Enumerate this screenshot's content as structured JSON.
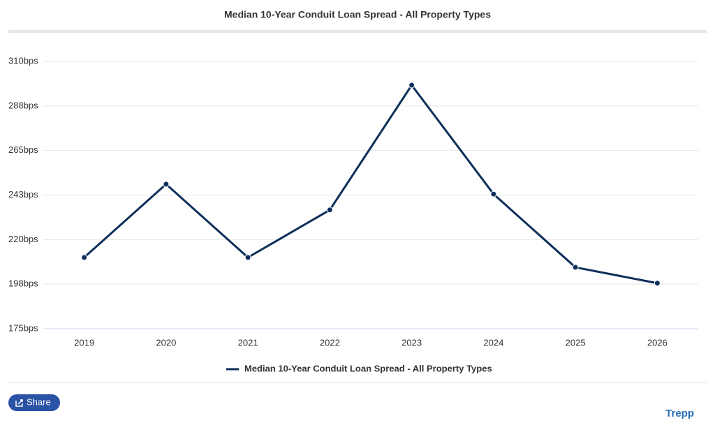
{
  "chart_data": {
    "type": "line",
    "title": "Median 10-Year Conduit Loan Spread - All Property Types",
    "categories": [
      "2019",
      "2020",
      "2021",
      "2022",
      "2023",
      "2024",
      "2025",
      "2026"
    ],
    "series": [
      {
        "name": "Median 10-Year Conduit Loan Spread - All Property Types",
        "color": "#0d2f5a",
        "values": [
          211,
          248,
          211,
          235,
          298,
          243,
          206,
          198
        ]
      }
    ],
    "ylim": [
      175,
      310
    ],
    "yticks": [
      {
        "value": 175,
        "label": "175bps"
      },
      {
        "value": 197.5,
        "label": "198bps"
      },
      {
        "value": 220,
        "label": "220bps"
      },
      {
        "value": 242.5,
        "label": "243bps"
      },
      {
        "value": 265,
        "label": "265bps"
      },
      {
        "value": 287.5,
        "label": "288bps"
      },
      {
        "value": 310,
        "label": "310bps"
      }
    ],
    "grid": true,
    "legend": "bottom"
  },
  "ui": {
    "share": "Share",
    "brand": "Trepp"
  }
}
